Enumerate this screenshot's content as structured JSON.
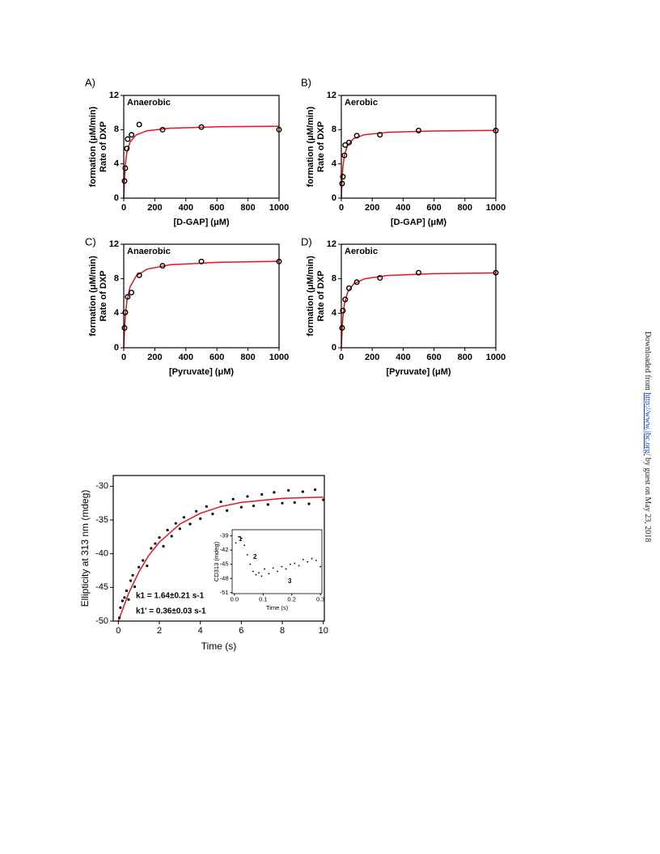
{
  "chart_data": [
    {
      "type": "scatter",
      "panel_label": "A)",
      "title": "Anaerobic",
      "xlabel": "[D-GAP] (μM)",
      "ylabel": [
        "Rate of DXP",
        "formation (μM/min)"
      ],
      "x": [
        5,
        10,
        20,
        25,
        50,
        100,
        250,
        500,
        1000
      ],
      "values": [
        2.0,
        3.5,
        5.8,
        6.9,
        7.4,
        8.6,
        8.0,
        8.3,
        8.0
      ],
      "fit_x": [
        0,
        5,
        10,
        20,
        40,
        80,
        150,
        300,
        600,
        1000
      ],
      "fit_values": [
        0,
        2.5,
        3.86,
        5.31,
        6.54,
        7.39,
        7.87,
        8.17,
        8.33,
        8.4
      ],
      "fit_color": "#e8141c",
      "marker": "open",
      "xlim": [
        0,
        1000
      ],
      "xticks": [
        0,
        200,
        400,
        600,
        800,
        1000
      ],
      "ylim": [
        0,
        12
      ],
      "yticks": [
        0,
        4,
        8,
        12
      ]
    },
    {
      "type": "scatter",
      "panel_label": "B)",
      "title": "Aerobic",
      "xlabel": "[D-GAP] (μM)",
      "ylabel": [
        "Rate of DXP",
        "formation (μM/min)"
      ],
      "x": [
        5,
        10,
        20,
        25,
        50,
        100,
        250,
        500,
        1000
      ],
      "values": [
        1.7,
        2.5,
        5.0,
        6.2,
        6.5,
        7.3,
        7.4,
        7.9,
        7.9
      ],
      "fit_x": [
        0,
        5,
        10,
        20,
        40,
        80,
        150,
        300,
        600,
        1000
      ],
      "fit_values": [
        0,
        2.35,
        3.64,
        5.0,
        6.15,
        6.96,
        7.41,
        7.69,
        7.84,
        7.91
      ],
      "fit_color": "#e8141c",
      "marker": "open",
      "xlim": [
        0,
        1000
      ],
      "xticks": [
        0,
        200,
        400,
        600,
        800,
        1000
      ],
      "ylim": [
        0,
        12
      ],
      "yticks": [
        0,
        4,
        8,
        12
      ]
    },
    {
      "type": "scatter",
      "panel_label": "C)",
      "title": "Anaerobic",
      "xlabel": "[Pyruvate] (μM)",
      "ylabel": [
        "Rate of DXP",
        "formation (μM/min)"
      ],
      "x": [
        5,
        10,
        25,
        50,
        100,
        250,
        500,
        1000
      ],
      "values": [
        2.3,
        4.1,
        5.9,
        6.4,
        8.4,
        9.5,
        10.0,
        10.0
      ],
      "fit_x": [
        0,
        5,
        10,
        20,
        40,
        80,
        150,
        300,
        600,
        1000
      ],
      "fit_values": [
        0,
        2.22,
        3.64,
        5.37,
        7.03,
        8.33,
        9.11,
        9.62,
        9.9,
        10.02
      ],
      "fit_color": "#e8141c",
      "marker": "open",
      "xlim": [
        0,
        1000
      ],
      "xticks": [
        0,
        200,
        400,
        600,
        800,
        1000
      ],
      "ylim": [
        0,
        12
      ],
      "yticks": [
        0,
        4,
        8,
        12
      ]
    },
    {
      "type": "scatter",
      "panel_label": "D)",
      "title": "Aerobic",
      "xlabel": "[Pyruvate] (μM)",
      "ylabel": [
        "Rate of DXP",
        "formation (μM/min)"
      ],
      "x": [
        5,
        10,
        25,
        50,
        100,
        250,
        500,
        1000
      ],
      "values": [
        2.3,
        4.3,
        5.6,
        6.9,
        7.6,
        8.1,
        8.7,
        8.7
      ],
      "fit_x": [
        0,
        5,
        10,
        20,
        40,
        80,
        150,
        300,
        600,
        1000
      ],
      "fit_values": [
        0,
        2.2,
        3.52,
        5.03,
        6.4,
        7.41,
        8.0,
        8.38,
        8.59,
        8.67
      ],
      "fit_color": "#e8141c",
      "marker": "open",
      "xlim": [
        0,
        1000
      ],
      "xticks": [
        0,
        200,
        400,
        600,
        800,
        1000
      ],
      "ylim": [
        0,
        12
      ],
      "yticks": [
        0,
        4,
        8,
        12
      ]
    },
    {
      "type": "scatter",
      "xlabel": "Time (s)",
      "ylabel": [
        "Ellipticity at 313 nm (mdeg)"
      ],
      "annotations": [
        "k1 = 1.64±0.21 s-1",
        "k1' = 0.36±0.03 s-1"
      ],
      "x": [
        0.05,
        0.1,
        0.2,
        0.3,
        0.4,
        0.5,
        0.6,
        0.7,
        0.8,
        1.0,
        1.2,
        1.4,
        1.6,
        1.8,
        2.0,
        2.2,
        2.4,
        2.6,
        2.8,
        3.0,
        3.2,
        3.5,
        3.8,
        4.0,
        4.3,
        4.6,
        5.0,
        5.3,
        5.6,
        6.0,
        6.3,
        6.6,
        7.0,
        7.3,
        7.6,
        8.0,
        8.3,
        8.6,
        9.0,
        9.3,
        9.6,
        10.0
      ],
      "values": [
        -49.5,
        -48.0,
        -47.0,
        -46.5,
        -45.5,
        -46.8,
        -44.0,
        -43.2,
        -44.9,
        -42.0,
        -41.0,
        -41.8,
        -39.2,
        -38.5,
        -37.6,
        -38.9,
        -36.5,
        -37.4,
        -35.5,
        -36.3,
        -34.6,
        -35.6,
        -33.7,
        -34.8,
        -33.0,
        -34.1,
        -32.3,
        -33.6,
        -31.9,
        -33.1,
        -31.5,
        -32.9,
        -31.2,
        -32.7,
        -30.9,
        -32.5,
        -30.6,
        -32.4,
        -30.8,
        -32.6,
        -30.5,
        -32.0
      ],
      "fit_x": [
        0,
        0.5,
        1,
        1.5,
        2,
        3,
        4,
        5,
        6,
        8,
        10
      ],
      "fit_values": [
        -50,
        -45.9,
        -42.7,
        -40.2,
        -38.3,
        -35.6,
        -34.0,
        -33.0,
        -32.4,
        -31.8,
        -31.6
      ],
      "fit_color": "#e8141c",
      "marker": "filled",
      "xlim": [
        -0.25,
        10.05
      ],
      "xticks": [
        0,
        2,
        4,
        6,
        8,
        10
      ],
      "ylim": [
        -50,
        -28.4
      ],
      "yticks": [
        -50,
        -45,
        -40,
        -35,
        -30
      ]
    },
    {
      "type": "scatter",
      "xlabel": "Time (s)",
      "ylabel": [
        "CD313 (mdeg)"
      ],
      "annotations": [
        "1",
        "2",
        "3"
      ],
      "x": [
        0.005,
        0.015,
        0.025,
        0.035,
        0.045,
        0.055,
        0.065,
        0.075,
        0.085,
        0.095,
        0.105,
        0.12,
        0.135,
        0.15,
        0.165,
        0.18,
        0.195,
        0.21,
        0.225,
        0.24,
        0.255,
        0.27,
        0.285,
        0.3
      ],
      "values": [
        -40.5,
        -39.2,
        -39.5,
        -41.0,
        -43.0,
        -45.0,
        -46.5,
        -47.2,
        -46.8,
        -47.5,
        -46.0,
        -47.0,
        -45.8,
        -46.5,
        -45.5,
        -46.0,
        -45.0,
        -44.8,
        -45.3,
        -44.0,
        -44.5,
        -43.8,
        -44.2,
        -45.5
      ],
      "marker": "filled",
      "xlim": [
        -0.008,
        0.305
      ],
      "xticks": [
        {
          "value": 0,
          "label": "0.0"
        },
        0.1,
        0.2,
        0.3
      ],
      "ylim": [
        -51.2,
        -37.7
      ],
      "yticks": [
        -39,
        -42,
        -45,
        -48,
        -51
      ]
    }
  ],
  "side_note": [
    "Downloaded from ",
    "http://www.jbc.org/",
    " by guest on May 23, 2018"
  ]
}
